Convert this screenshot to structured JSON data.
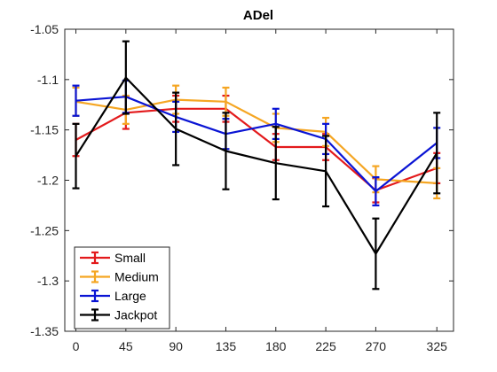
{
  "chart_data": {
    "type": "line",
    "title": "ADel",
    "xlabel": "",
    "ylabel": "",
    "x": [
      0,
      45,
      90,
      135,
      180,
      225,
      270,
      325
    ],
    "xticks": [
      "0",
      "45",
      "90",
      "135",
      "180",
      "225",
      "270",
      "325"
    ],
    "xlim": [
      -10,
      340
    ],
    "ylim": [
      -1.35,
      -1.05
    ],
    "yticks": [
      "-1.05",
      "-1.1",
      "-1.15",
      "-1.2",
      "-1.25",
      "-1.3",
      "-1.35"
    ],
    "ytick_values": [
      -1.05,
      -1.1,
      -1.15,
      -1.2,
      -1.25,
      -1.3,
      -1.35
    ],
    "grid": false,
    "legend_position": "bottom-left",
    "error_bars": true,
    "series": [
      {
        "name": "Small",
        "color": "#e31a1c",
        "values": [
          -1.16,
          -1.133,
          -1.129,
          -1.129,
          -1.167,
          -1.167,
          -1.21,
          -1.188
        ],
        "errors": [
          0.016,
          0.016,
          0.013,
          0.013,
          0.013,
          0.013,
          0.012,
          0.015
        ]
      },
      {
        "name": "Medium",
        "color": "#f5a623",
        "values": [
          -1.122,
          -1.13,
          -1.12,
          -1.122,
          -1.148,
          -1.152,
          -1.199,
          -1.203
        ],
        "errors": [
          0.014,
          0.014,
          0.014,
          0.014,
          0.014,
          0.014,
          0.013,
          0.015
        ]
      },
      {
        "name": "Large",
        "color": "#0a14d4",
        "values": [
          -1.121,
          -1.117,
          -1.137,
          -1.154,
          -1.144,
          -1.159,
          -1.211,
          -1.163
        ],
        "errors": [
          0.015,
          0.016,
          0.015,
          0.015,
          0.015,
          0.015,
          0.014,
          0.015
        ]
      },
      {
        "name": "Jackpot",
        "color": "#000000",
        "values": [
          -1.176,
          -1.098,
          -1.149,
          -1.171,
          -1.183,
          -1.191,
          -1.273,
          -1.173
        ],
        "errors": [
          0.032,
          0.036,
          0.036,
          0.038,
          0.036,
          0.035,
          0.035,
          0.04
        ]
      }
    ]
  }
}
